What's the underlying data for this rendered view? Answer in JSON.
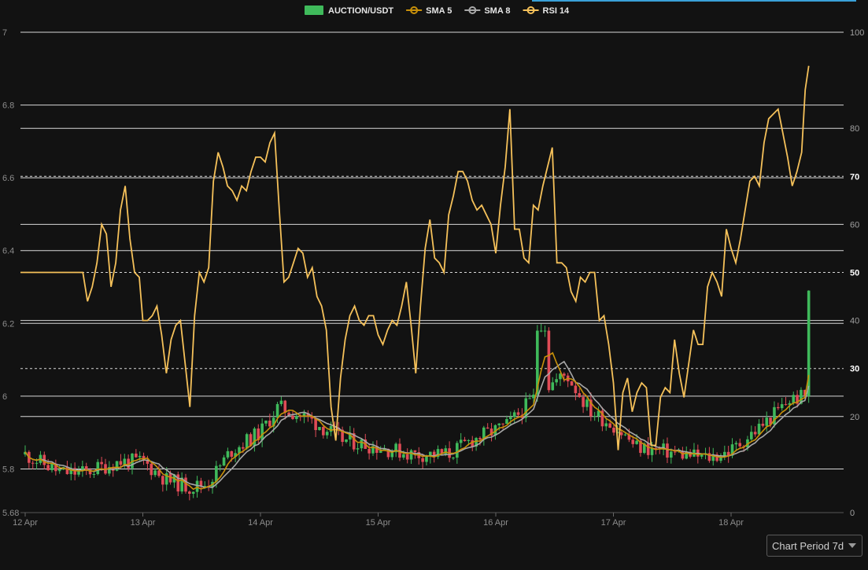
{
  "period_select": {
    "label": "Chart Period 7d"
  },
  "chart_data": {
    "type": "candlestick",
    "x_ticks": [
      "12 Apr",
      "13 Apr",
      "14 Apr",
      "15 Apr",
      "16 Apr",
      "17 Apr",
      "18 Apr"
    ],
    "y_left": {
      "ticks": [
        5.68,
        5.8,
        6,
        6.2,
        6.4,
        6.6,
        6.8,
        7
      ],
      "range": [
        5.68,
        7
      ]
    },
    "y_right": {
      "ticks": [
        0,
        20,
        30,
        40,
        50,
        60,
        70,
        80,
        100
      ],
      "range": [
        0,
        100
      ],
      "bold_ticks": [
        30,
        50,
        70
      ]
    },
    "grid": true,
    "legend_position": "top-center",
    "colors": {
      "up": "#3fba5b",
      "down": "#e04b56",
      "sma5": "#c8900a",
      "sma8": "#a8a8a8",
      "rsi": "#f5c15a"
    },
    "series": [
      {
        "name": "AUCTION/USDT",
        "type": "candlestick"
      },
      {
        "name": "SMA 5",
        "type": "line"
      },
      {
        "name": "SMA 8",
        "type": "line"
      },
      {
        "name": "RSI 14",
        "type": "line",
        "axis": "right",
        "points": [
          [
            0.0,
            50
          ],
          [
            0.49,
            50
          ],
          [
            0.53,
            44
          ],
          [
            0.57,
            47
          ],
          [
            0.61,
            52
          ],
          [
            0.65,
            60
          ],
          [
            0.69,
            58
          ],
          [
            0.73,
            47
          ],
          [
            0.77,
            52
          ],
          [
            0.81,
            63
          ],
          [
            0.85,
            68
          ],
          [
            0.89,
            57
          ],
          [
            0.93,
            50
          ],
          [
            0.97,
            49
          ],
          [
            1.0,
            40
          ],
          [
            1.04,
            40
          ],
          [
            1.08,
            41
          ],
          [
            1.12,
            43
          ],
          [
            1.16,
            37
          ],
          [
            1.2,
            29
          ],
          [
            1.24,
            36
          ],
          [
            1.28,
            39
          ],
          [
            1.32,
            40
          ],
          [
            1.36,
            31
          ],
          [
            1.4,
            22
          ],
          [
            1.44,
            41
          ],
          [
            1.48,
            50
          ],
          [
            1.52,
            48
          ],
          [
            1.56,
            51
          ],
          [
            1.6,
            69
          ],
          [
            1.64,
            75
          ],
          [
            1.68,
            72
          ],
          [
            1.72,
            68
          ],
          [
            1.76,
            67
          ],
          [
            1.8,
            65
          ],
          [
            1.84,
            68
          ],
          [
            1.88,
            67
          ],
          [
            1.92,
            71
          ],
          [
            1.96,
            74
          ],
          [
            2.0,
            74
          ],
          [
            2.04,
            73
          ],
          [
            2.08,
            77
          ],
          [
            2.12,
            79
          ],
          [
            2.16,
            63
          ],
          [
            2.2,
            48
          ],
          [
            2.24,
            49
          ],
          [
            2.28,
            52
          ],
          [
            2.32,
            55
          ],
          [
            2.36,
            54
          ],
          [
            2.4,
            49
          ],
          [
            2.44,
            51
          ],
          [
            2.48,
            45
          ],
          [
            2.52,
            43
          ],
          [
            2.56,
            38
          ],
          [
            2.6,
            22
          ],
          [
            2.64,
            15
          ],
          [
            2.68,
            28
          ],
          [
            2.72,
            36
          ],
          [
            2.76,
            41
          ],
          [
            2.8,
            43
          ],
          [
            2.84,
            40
          ],
          [
            2.88,
            39
          ],
          [
            2.92,
            41
          ],
          [
            2.96,
            41
          ],
          [
            3.0,
            37
          ],
          [
            3.04,
            35
          ],
          [
            3.08,
            38
          ],
          [
            3.12,
            40
          ],
          [
            3.16,
            39
          ],
          [
            3.2,
            43
          ],
          [
            3.24,
            48
          ],
          [
            3.28,
            39
          ],
          [
            3.32,
            29
          ],
          [
            3.36,
            43
          ],
          [
            3.4,
            55
          ],
          [
            3.44,
            61
          ],
          [
            3.48,
            53
          ],
          [
            3.52,
            52
          ],
          [
            3.56,
            50
          ],
          [
            3.6,
            62
          ],
          [
            3.64,
            66
          ],
          [
            3.68,
            71
          ],
          [
            3.72,
            71
          ],
          [
            3.76,
            69
          ],
          [
            3.8,
            65
          ],
          [
            3.84,
            63
          ],
          [
            3.88,
            64
          ],
          [
            3.92,
            62
          ],
          [
            3.96,
            60
          ],
          [
            4.0,
            54
          ],
          [
            4.04,
            64
          ],
          [
            4.08,
            72
          ],
          [
            4.12,
            84
          ],
          [
            4.16,
            59
          ],
          [
            4.2,
            59
          ],
          [
            4.24,
            53
          ],
          [
            4.28,
            52
          ],
          [
            4.32,
            64
          ],
          [
            4.36,
            63
          ],
          [
            4.4,
            68
          ],
          [
            4.44,
            72
          ],
          [
            4.48,
            76
          ],
          [
            4.52,
            52
          ],
          [
            4.56,
            52
          ],
          [
            4.6,
            51
          ],
          [
            4.64,
            46
          ],
          [
            4.68,
            44
          ],
          [
            4.72,
            49
          ],
          [
            4.76,
            48
          ],
          [
            4.8,
            50
          ],
          [
            4.84,
            50
          ],
          [
            4.88,
            40
          ],
          [
            4.92,
            41
          ],
          [
            4.96,
            35
          ],
          [
            5.0,
            27
          ],
          [
            5.04,
            13
          ],
          [
            5.08,
            25
          ],
          [
            5.12,
            28
          ],
          [
            5.16,
            21
          ],
          [
            5.2,
            25
          ],
          [
            5.24,
            27
          ],
          [
            5.28,
            26
          ],
          [
            5.32,
            14
          ],
          [
            5.36,
            14
          ],
          [
            5.4,
            24
          ],
          [
            5.44,
            26
          ],
          [
            5.48,
            25
          ],
          [
            5.52,
            36
          ],
          [
            5.56,
            29
          ],
          [
            5.6,
            24
          ],
          [
            5.64,
            31
          ],
          [
            5.68,
            38
          ],
          [
            5.72,
            35
          ],
          [
            5.76,
            35
          ],
          [
            5.8,
            47
          ],
          [
            5.84,
            50
          ],
          [
            5.88,
            48
          ],
          [
            5.92,
            45
          ],
          [
            5.96,
            59
          ],
          [
            6.0,
            55
          ],
          [
            6.04,
            52
          ],
          [
            6.08,
            57
          ],
          [
            6.12,
            63
          ],
          [
            6.16,
            69
          ],
          [
            6.2,
            70
          ],
          [
            6.24,
            68
          ],
          [
            6.28,
            77
          ],
          [
            6.32,
            82
          ],
          [
            6.36,
            83
          ],
          [
            6.4,
            84
          ],
          [
            6.44,
            79
          ],
          [
            6.48,
            74
          ],
          [
            6.52,
            68
          ],
          [
            6.56,
            71
          ],
          [
            6.6,
            75
          ],
          [
            6.63,
            88
          ],
          [
            6.66,
            93
          ]
        ]
      }
    ]
  }
}
